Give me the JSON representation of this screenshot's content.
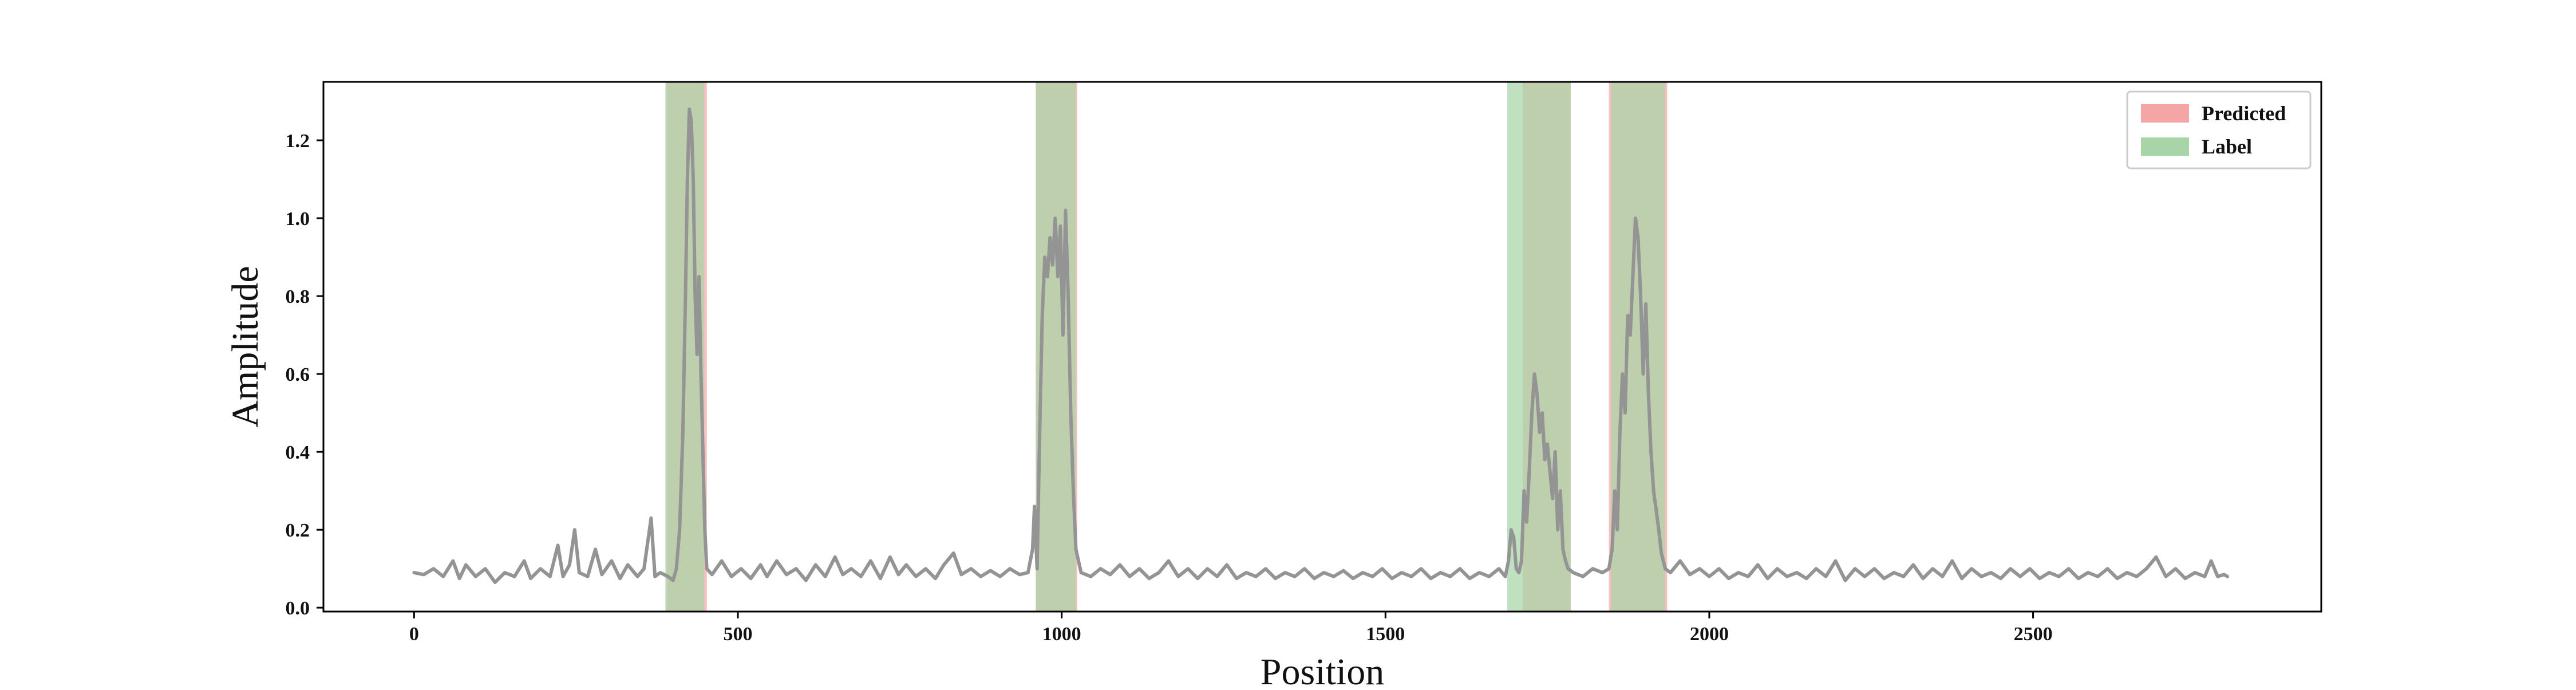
{
  "chart_data": {
    "type": "line",
    "title": "",
    "xlabel": "Position",
    "ylabel": "Amplitude",
    "xlim": [
      -140,
      2945
    ],
    "ylim": [
      -0.01,
      1.35
    ],
    "xticks": [
      0,
      500,
      1000,
      1500,
      2000,
      2500
    ],
    "yticks": [
      0.0,
      0.2,
      0.4,
      0.6,
      0.8,
      1.0,
      1.2
    ],
    "ytick_labels": [
      "0.0",
      "0.2",
      "0.4",
      "0.6",
      "0.8",
      "1.0",
      "1.2"
    ],
    "grid": false,
    "legend": {
      "position": "top-right",
      "entries": [
        {
          "name": "Predicted",
          "color": "#f4a6a6"
        },
        {
          "name": "Label",
          "color": "#a8d5a8"
        }
      ]
    },
    "intervals": [
      {
        "name": "Predicted",
        "color": "#f4a6a6",
        "ranges": [
          [
            390,
            452
          ],
          [
            960,
            1024
          ],
          [
            1712,
            1786
          ],
          [
            1845,
            1935
          ]
        ]
      },
      {
        "name": "Label",
        "color": "#a8d5a8",
        "ranges": [
          [
            388,
            448
          ],
          [
            960,
            1022
          ],
          [
            1688,
            1786
          ],
          [
            1848,
            1932
          ]
        ]
      }
    ],
    "series": [
      {
        "color": "#949494",
        "points": [
          [
            0,
            0.09
          ],
          [
            15,
            0.085
          ],
          [
            30,
            0.1
          ],
          [
            45,
            0.08
          ],
          [
            60,
            0.12
          ],
          [
            70,
            0.075
          ],
          [
            80,
            0.11
          ],
          [
            95,
            0.08
          ],
          [
            110,
            0.1
          ],
          [
            125,
            0.065
          ],
          [
            140,
            0.09
          ],
          [
            155,
            0.08
          ],
          [
            170,
            0.12
          ],
          [
            180,
            0.075
          ],
          [
            195,
            0.1
          ],
          [
            210,
            0.08
          ],
          [
            222,
            0.16
          ],
          [
            230,
            0.08
          ],
          [
            240,
            0.11
          ],
          [
            248,
            0.2
          ],
          [
            255,
            0.09
          ],
          [
            268,
            0.08
          ],
          [
            280,
            0.15
          ],
          [
            290,
            0.085
          ],
          [
            305,
            0.12
          ],
          [
            318,
            0.075
          ],
          [
            330,
            0.11
          ],
          [
            345,
            0.08
          ],
          [
            355,
            0.1
          ],
          [
            366,
            0.23
          ],
          [
            372,
            0.08
          ],
          [
            380,
            0.09
          ],
          [
            392,
            0.08
          ],
          [
            400,
            0.07
          ],
          [
            405,
            0.1
          ],
          [
            410,
            0.2
          ],
          [
            415,
            0.45
          ],
          [
            419,
            0.8
          ],
          [
            422,
            1.1
          ],
          [
            425,
            1.28
          ],
          [
            428,
            1.25
          ],
          [
            431,
            1.1
          ],
          [
            434,
            0.8
          ],
          [
            437,
            0.65
          ],
          [
            440,
            0.85
          ],
          [
            443,
            0.6
          ],
          [
            446,
            0.4
          ],
          [
            449,
            0.2
          ],
          [
            452,
            0.1
          ],
          [
            460,
            0.085
          ],
          [
            475,
            0.12
          ],
          [
            490,
            0.08
          ],
          [
            505,
            0.1
          ],
          [
            520,
            0.075
          ],
          [
            535,
            0.11
          ],
          [
            545,
            0.08
          ],
          [
            560,
            0.12
          ],
          [
            575,
            0.085
          ],
          [
            590,
            0.1
          ],
          [
            605,
            0.07
          ],
          [
            620,
            0.11
          ],
          [
            635,
            0.08
          ],
          [
            650,
            0.13
          ],
          [
            662,
            0.085
          ],
          [
            675,
            0.1
          ],
          [
            690,
            0.08
          ],
          [
            705,
            0.12
          ],
          [
            720,
            0.075
          ],
          [
            735,
            0.13
          ],
          [
            748,
            0.085
          ],
          [
            760,
            0.11
          ],
          [
            775,
            0.08
          ],
          [
            790,
            0.1
          ],
          [
            805,
            0.075
          ],
          [
            818,
            0.11
          ],
          [
            833,
            0.14
          ],
          [
            845,
            0.085
          ],
          [
            860,
            0.1
          ],
          [
            875,
            0.08
          ],
          [
            890,
            0.095
          ],
          [
            905,
            0.08
          ],
          [
            920,
            0.1
          ],
          [
            935,
            0.085
          ],
          [
            948,
            0.09
          ],
          [
            955,
            0.15
          ],
          [
            958,
            0.26
          ],
          [
            962,
            0.1
          ],
          [
            966,
            0.45
          ],
          [
            970,
            0.75
          ],
          [
            974,
            0.9
          ],
          [
            978,
            0.85
          ],
          [
            982,
            0.95
          ],
          [
            986,
            0.88
          ],
          [
            990,
            1.0
          ],
          [
            994,
            0.85
          ],
          [
            998,
            0.98
          ],
          [
            1002,
            0.7
          ],
          [
            1006,
            1.02
          ],
          [
            1010,
            0.8
          ],
          [
            1014,
            0.5
          ],
          [
            1018,
            0.3
          ],
          [
            1022,
            0.15
          ],
          [
            1030,
            0.09
          ],
          [
            1045,
            0.08
          ],
          [
            1060,
            0.1
          ],
          [
            1075,
            0.085
          ],
          [
            1090,
            0.11
          ],
          [
            1105,
            0.08
          ],
          [
            1120,
            0.1
          ],
          [
            1135,
            0.075
          ],
          [
            1150,
            0.09
          ],
          [
            1165,
            0.12
          ],
          [
            1180,
            0.08
          ],
          [
            1195,
            0.1
          ],
          [
            1210,
            0.075
          ],
          [
            1225,
            0.1
          ],
          [
            1240,
            0.08
          ],
          [
            1255,
            0.11
          ],
          [
            1270,
            0.075
          ],
          [
            1285,
            0.09
          ],
          [
            1300,
            0.08
          ],
          [
            1315,
            0.1
          ],
          [
            1330,
            0.075
          ],
          [
            1345,
            0.09
          ],
          [
            1360,
            0.08
          ],
          [
            1375,
            0.1
          ],
          [
            1390,
            0.075
          ],
          [
            1405,
            0.09
          ],
          [
            1420,
            0.08
          ],
          [
            1435,
            0.095
          ],
          [
            1450,
            0.075
          ],
          [
            1465,
            0.09
          ],
          [
            1480,
            0.08
          ],
          [
            1495,
            0.1
          ],
          [
            1510,
            0.075
          ],
          [
            1525,
            0.09
          ],
          [
            1540,
            0.08
          ],
          [
            1555,
            0.1
          ],
          [
            1570,
            0.075
          ],
          [
            1585,
            0.09
          ],
          [
            1600,
            0.08
          ],
          [
            1615,
            0.1
          ],
          [
            1630,
            0.075
          ],
          [
            1645,
            0.09
          ],
          [
            1660,
            0.08
          ],
          [
            1675,
            0.1
          ],
          [
            1685,
            0.08
          ],
          [
            1690,
            0.12
          ],
          [
            1694,
            0.2
          ],
          [
            1698,
            0.18
          ],
          [
            1702,
            0.1
          ],
          [
            1706,
            0.09
          ],
          [
            1710,
            0.12
          ],
          [
            1714,
            0.3
          ],
          [
            1718,
            0.22
          ],
          [
            1722,
            0.35
          ],
          [
            1726,
            0.5
          ],
          [
            1730,
            0.6
          ],
          [
            1734,
            0.55
          ],
          [
            1738,
            0.45
          ],
          [
            1742,
            0.5
          ],
          [
            1746,
            0.38
          ],
          [
            1750,
            0.42
          ],
          [
            1754,
            0.35
          ],
          [
            1758,
            0.28
          ],
          [
            1762,
            0.4
          ],
          [
            1766,
            0.2
          ],
          [
            1770,
            0.3
          ],
          [
            1774,
            0.15
          ],
          [
            1778,
            0.12
          ],
          [
            1782,
            0.1
          ],
          [
            1790,
            0.09
          ],
          [
            1805,
            0.08
          ],
          [
            1820,
            0.1
          ],
          [
            1835,
            0.09
          ],
          [
            1845,
            0.1
          ],
          [
            1850,
            0.15
          ],
          [
            1854,
            0.3
          ],
          [
            1858,
            0.2
          ],
          [
            1862,
            0.45
          ],
          [
            1866,
            0.6
          ],
          [
            1870,
            0.5
          ],
          [
            1874,
            0.75
          ],
          [
            1878,
            0.7
          ],
          [
            1882,
            0.85
          ],
          [
            1886,
            1.0
          ],
          [
            1890,
            0.95
          ],
          [
            1894,
            0.8
          ],
          [
            1898,
            0.6
          ],
          [
            1902,
            0.78
          ],
          [
            1906,
            0.55
          ],
          [
            1910,
            0.4
          ],
          [
            1914,
            0.3
          ],
          [
            1918,
            0.25
          ],
          [
            1922,
            0.2
          ],
          [
            1926,
            0.14
          ],
          [
            1932,
            0.1
          ],
          [
            1940,
            0.09
          ],
          [
            1955,
            0.12
          ],
          [
            1970,
            0.085
          ],
          [
            1985,
            0.1
          ],
          [
            2000,
            0.08
          ],
          [
            2015,
            0.1
          ],
          [
            2030,
            0.075
          ],
          [
            2045,
            0.09
          ],
          [
            2060,
            0.08
          ],
          [
            2075,
            0.11
          ],
          [
            2090,
            0.075
          ],
          [
            2105,
            0.1
          ],
          [
            2120,
            0.08
          ],
          [
            2135,
            0.09
          ],
          [
            2150,
            0.075
          ],
          [
            2165,
            0.1
          ],
          [
            2180,
            0.08
          ],
          [
            2195,
            0.12
          ],
          [
            2210,
            0.07
          ],
          [
            2225,
            0.1
          ],
          [
            2240,
            0.08
          ],
          [
            2255,
            0.1
          ],
          [
            2270,
            0.075
          ],
          [
            2285,
            0.09
          ],
          [
            2300,
            0.08
          ],
          [
            2315,
            0.11
          ],
          [
            2330,
            0.075
          ],
          [
            2345,
            0.1
          ],
          [
            2360,
            0.08
          ],
          [
            2375,
            0.12
          ],
          [
            2390,
            0.075
          ],
          [
            2405,
            0.1
          ],
          [
            2420,
            0.08
          ],
          [
            2435,
            0.09
          ],
          [
            2450,
            0.075
          ],
          [
            2465,
            0.1
          ],
          [
            2480,
            0.08
          ],
          [
            2495,
            0.1
          ],
          [
            2510,
            0.075
          ],
          [
            2525,
            0.09
          ],
          [
            2540,
            0.08
          ],
          [
            2555,
            0.1
          ],
          [
            2570,
            0.075
          ],
          [
            2585,
            0.09
          ],
          [
            2600,
            0.08
          ],
          [
            2615,
            0.1
          ],
          [
            2630,
            0.075
          ],
          [
            2645,
            0.09
          ],
          [
            2660,
            0.08
          ],
          [
            2675,
            0.1
          ],
          [
            2690,
            0.13
          ],
          [
            2705,
            0.08
          ],
          [
            2720,
            0.1
          ],
          [
            2735,
            0.075
          ],
          [
            2750,
            0.09
          ],
          [
            2765,
            0.08
          ],
          [
            2775,
            0.12
          ],
          [
            2785,
            0.08
          ],
          [
            2795,
            0.085
          ],
          [
            2800,
            0.08
          ]
        ]
      }
    ]
  }
}
